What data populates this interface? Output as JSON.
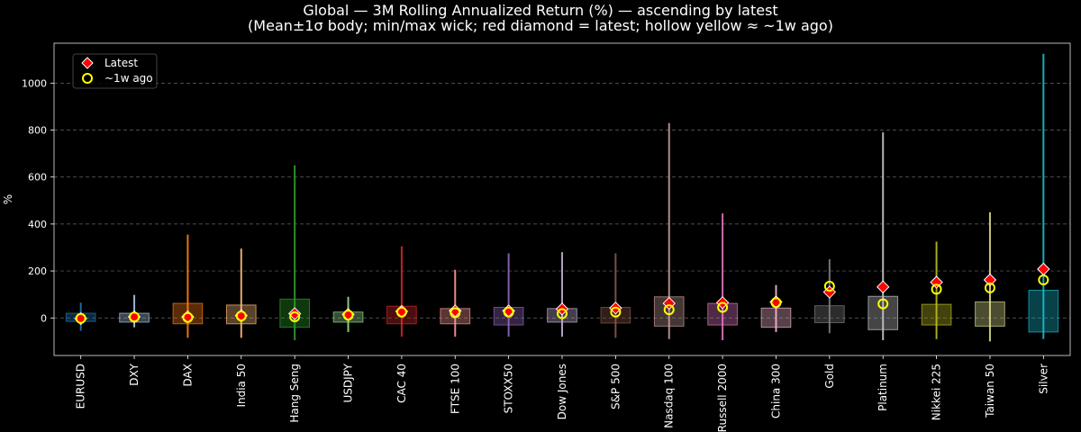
{
  "chart_data": {
    "type": "box",
    "title": "Global — 3M Rolling Annualized Return (%) — ascending by latest",
    "subtitle": "(Mean±1σ body; min/max wick; red diamond = latest; hollow yellow ≈ ~1w ago)",
    "ylabel": "%",
    "xlabel": "",
    "ylim": [
      -160,
      1170
    ],
    "yticks": [
      0,
      200,
      400,
      600,
      800,
      1000
    ],
    "grid": true,
    "legend": {
      "position": "top-left",
      "latest": "Latest",
      "week_ago": "~1w ago"
    },
    "categories": [
      "EURUSD",
      "DXY",
      "DAX",
      "India 50",
      "Hang Seng",
      "USDJPY",
      "CAC 40",
      "FTSE 100",
      "STOXX50",
      "Dow Jones",
      "S&P 500",
      "Nasdaq 100",
      "Russell 2000",
      "China 300",
      "Gold",
      "Platinum",
      "Nikkei 225",
      "Taiwan 50",
      "Silver"
    ],
    "colors": [
      "#1f77b4",
      "#aec7e8",
      "#ff7f0e",
      "#ffbb78",
      "#2ca02c",
      "#98df8a",
      "#d62728",
      "#ff9896",
      "#9467bd",
      "#c5b0d5",
      "#8c564b",
      "#c49c94",
      "#e377c2",
      "#f7b6d2",
      "#7f7f7f",
      "#c7c7c7",
      "#bcbd22",
      "#dbdb8d",
      "#17becf"
    ],
    "series": {
      "min": [
        -55,
        -40,
        -85,
        -85,
        -95,
        -60,
        -80,
        -80,
        -80,
        -80,
        -85,
        -90,
        -95,
        -60,
        -65,
        -95,
        -90,
        -100,
        -90
      ],
      "max": [
        65,
        98,
        355,
        295,
        650,
        90,
        305,
        205,
        275,
        280,
        275,
        830,
        445,
        140,
        250,
        790,
        325,
        450,
        1125
      ],
      "mean_minus_sd": [
        -15,
        -18,
        -25,
        -25,
        -40,
        -18,
        -25,
        -25,
        -30,
        -18,
        -22,
        -35,
        -30,
        -40,
        -20,
        -50,
        -30,
        -35,
        -60
      ],
      "mean_plus_sd": [
        20,
        20,
        62,
        55,
        80,
        25,
        50,
        40,
        45,
        40,
        45,
        90,
        62,
        42,
        52,
        92,
        58,
        68,
        118
      ],
      "latest": [
        -3,
        5,
        5,
        10,
        18,
        15,
        28,
        30,
        30,
        38,
        42,
        62,
        65,
        68,
        110,
        132,
        152,
        162,
        208
      ],
      "week_ago": [
        -2,
        4,
        2,
        8,
        5,
        12,
        25,
        22,
        25,
        18,
        25,
        35,
        45,
        65,
        135,
        60,
        122,
        128,
        162
      ]
    }
  }
}
